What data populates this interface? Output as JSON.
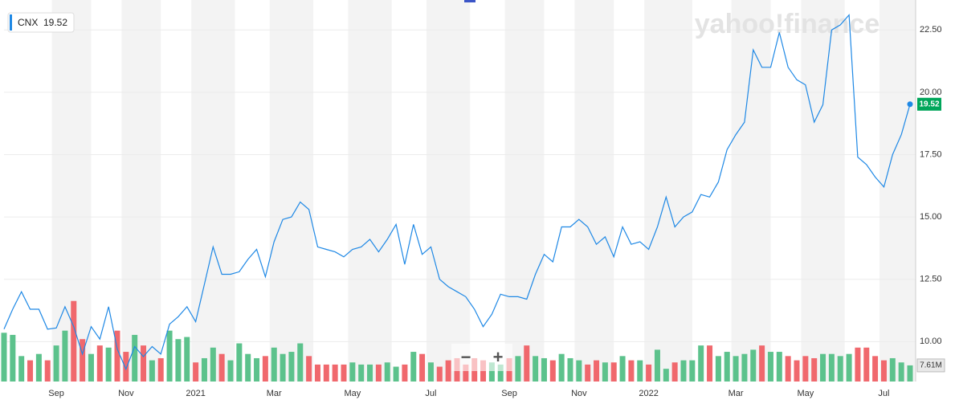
{
  "chart_data": {
    "type": "line",
    "watermark": "yahoo!finance",
    "zoom_out": "−",
    "zoom_in": "+",
    "categories": [
      null,
      null,
      null,
      null,
      null,
      null,
      "Sep",
      null,
      null,
      null,
      null,
      null,
      null,
      null,
      "Nov",
      null,
      null,
      null,
      null,
      null,
      null,
      null,
      "2021",
      null,
      null,
      null,
      null,
      null,
      null,
      null,
      null,
      "Mar",
      null,
      null,
      null,
      null,
      null,
      null,
      null,
      null,
      "May",
      null,
      null,
      null,
      null,
      null,
      null,
      null,
      null,
      "Jul",
      null,
      null,
      null,
      null,
      null,
      null,
      null,
      null,
      "Sep",
      null,
      null,
      null,
      null,
      null,
      null,
      null,
      "Nov",
      null,
      null,
      null,
      null,
      null,
      null,
      null,
      "2022",
      null,
      null,
      null,
      null,
      null,
      null,
      null,
      null,
      null,
      "Mar",
      null,
      null,
      null,
      null,
      null,
      null,
      null,
      "May",
      null,
      null,
      null,
      null,
      null,
      null,
      null,
      null,
      "Jul",
      null,
      null,
      null
    ],
    "series": [
      {
        "name": "CNX",
        "color": "#1e88e5",
        "values": [
          10.5,
          11.3,
          12.0,
          11.3,
          11.3,
          10.5,
          10.55,
          11.4,
          10.6,
          9.5,
          10.6,
          10.1,
          11.4,
          9.7,
          8.9,
          9.8,
          9.4,
          9.8,
          9.5,
          10.7,
          11.0,
          11.4,
          10.8,
          12.3,
          13.8,
          12.7,
          12.7,
          12.8,
          13.3,
          13.7,
          12.6,
          14.0,
          14.9,
          15.0,
          15.6,
          15.3,
          13.8,
          13.7,
          13.6,
          13.4,
          13.7,
          13.8,
          14.1,
          13.6,
          14.1,
          14.7,
          13.1,
          14.7,
          13.5,
          13.8,
          12.5,
          12.2,
          12.0,
          11.8,
          11.3,
          10.6,
          11.1,
          11.9,
          11.8,
          11.8,
          11.7,
          12.7,
          13.5,
          13.2,
          14.6,
          14.6,
          14.9,
          14.6,
          13.9,
          14.2,
          13.4,
          14.6,
          13.9,
          14.0,
          13.7,
          14.6,
          15.8,
          14.6,
          15.0,
          15.2,
          15.9,
          15.8,
          16.4,
          17.7,
          18.3,
          18.8,
          21.7,
          21.0,
          21.0,
          22.4,
          21.0,
          20.5,
          20.3,
          18.8,
          19.5,
          22.5,
          22.7,
          23.1,
          17.4,
          17.1,
          16.6,
          16.2,
          17.5,
          18.3,
          19.52
        ]
      },
      {
        "name": "Volume",
        "axis": "y2",
        "up_color": "#5cc28c",
        "down_color": "#f0686d",
        "values": [
          23,
          22,
          12,
          10,
          13,
          10,
          17,
          24,
          38,
          20,
          13,
          17,
          16,
          24,
          14,
          22,
          17,
          10,
          11,
          24,
          20,
          21,
          9,
          11,
          16,
          13,
          10,
          18,
          13,
          11,
          12,
          16,
          13,
          14,
          18,
          12,
          8,
          8,
          8,
          8,
          9,
          8,
          8,
          8,
          9,
          7,
          8,
          14,
          13,
          9,
          7,
          10,
          11,
          8,
          11,
          10,
          9,
          8,
          11,
          12,
          17,
          12,
          11,
          10,
          13,
          11,
          10,
          8,
          10,
          9,
          9,
          12,
          10,
          10,
          8,
          15,
          6,
          9,
          10,
          10,
          17,
          17,
          12,
          14,
          12,
          13,
          15,
          17,
          14,
          14,
          12,
          10,
          12,
          11,
          13,
          13,
          12,
          13,
          16,
          16,
          12,
          10,
          11,
          9,
          7.61
        ],
        "value_labels": [
          null,
          null,
          null,
          null,
          null,
          null,
          null,
          null,
          null,
          null,
          null,
          null,
          null,
          null,
          null,
          null,
          null,
          null,
          null,
          null,
          null,
          null,
          null,
          null,
          null,
          null,
          null,
          null,
          null,
          null,
          null,
          null,
          null,
          null,
          null,
          null,
          null,
          null,
          null,
          null,
          null,
          null,
          null,
          null,
          null,
          null,
          null,
          null,
          null,
          null,
          null,
          null,
          null,
          null,
          null,
          null,
          null,
          null,
          null,
          null,
          null,
          null,
          null,
          null,
          null,
          null,
          null,
          null,
          null,
          null,
          null,
          null,
          null,
          null,
          null,
          null,
          null,
          null,
          null,
          null,
          null,
          null,
          null,
          null,
          null,
          null,
          null,
          null,
          null,
          null,
          null,
          null,
          null,
          null,
          null,
          null,
          null,
          null,
          null,
          null,
          null,
          null,
          null,
          null,
          "7.61M"
        ]
      }
    ],
    "ylim": [
      8.4,
      23.7
    ],
    "yticks": [
      {
        "value": 10,
        "label": "10.00"
      },
      {
        "value": 12.5,
        "label": "12.50"
      },
      {
        "value": 15,
        "label": "15.00"
      },
      {
        "value": 17.5,
        "label": "17.50"
      },
      {
        "value": 20,
        "label": "20.00"
      },
      {
        "value": 22.5,
        "label": "22.50"
      }
    ],
    "y2lim": [
      0,
      180
    ],
    "grid": true
  }
}
